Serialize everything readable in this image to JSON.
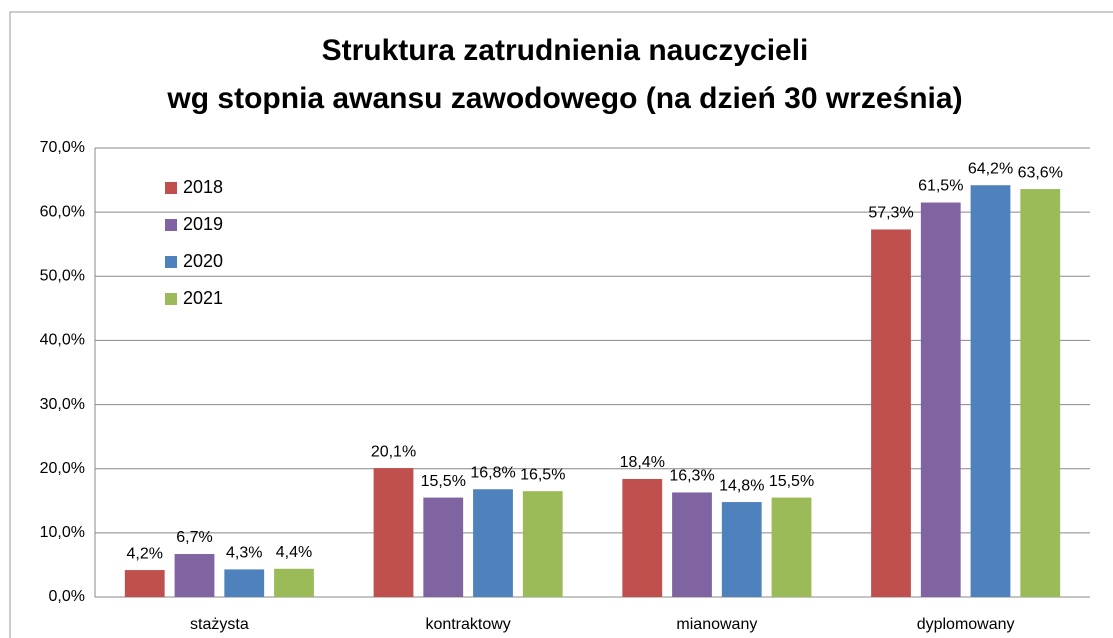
{
  "chart_data": {
    "type": "bar",
    "title": [
      "Struktura zatrudnienia nauczycieli",
      "wg stopnia awansu zawodowego (na dzień 30 września)"
    ],
    "categories": [
      "stażysta",
      "kontraktowy",
      "mianowany",
      "dyplomowany"
    ],
    "series": [
      {
        "name": "2018",
        "color": "#c0504d",
        "values": [
          4.2,
          20.1,
          18.4,
          57.3
        ],
        "value_labels": [
          "4,2%",
          "20,1%",
          "18,4%",
          "57,3%"
        ]
      },
      {
        "name": "2019",
        "color": "#8064a2",
        "values": [
          6.7,
          15.5,
          16.3,
          61.5
        ],
        "value_labels": [
          "6,7%",
          "15,5%",
          "16,3%",
          "61,5%"
        ]
      },
      {
        "name": "2020",
        "color": "#4f81bd",
        "values": [
          4.3,
          16.8,
          14.8,
          64.2
        ],
        "value_labels": [
          "4,3%",
          "16,8%",
          "14,8%",
          "64,2%"
        ]
      },
      {
        "name": "2021",
        "color": "#9bbb59",
        "values": [
          4.4,
          16.5,
          15.5,
          63.6
        ],
        "value_labels": [
          "4,4%",
          "16,5%",
          "15,5%",
          "63,6%"
        ]
      }
    ],
    "ylim": [
      0,
      70
    ],
    "yticks": [
      {
        "value": 0,
        "label": "0,0%"
      },
      {
        "value": 10,
        "label": "10,0%"
      },
      {
        "value": 20,
        "label": "20,0%"
      },
      {
        "value": 30,
        "label": "30,0%"
      },
      {
        "value": 40,
        "label": "40,0%"
      },
      {
        "value": 50,
        "label": "50,0%"
      },
      {
        "value": 60,
        "label": "60,0%"
      },
      {
        "value": 70,
        "label": "70,0%"
      }
    ],
    "grid": true,
    "legend": "upper left"
  }
}
